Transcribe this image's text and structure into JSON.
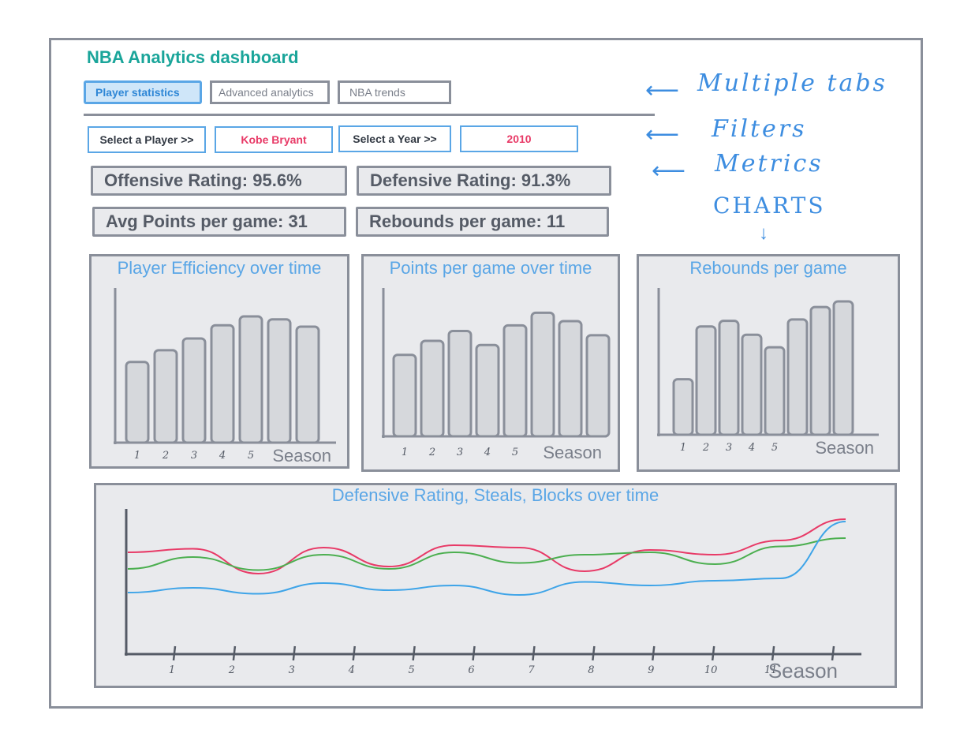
{
  "app": {
    "title": "NBA Analytics dashboard"
  },
  "tabs": [
    {
      "label": "Player statistics",
      "active": true
    },
    {
      "label": "Advanced analytics",
      "active": false
    },
    {
      "label": "NBA trends",
      "active": false
    }
  ],
  "filters": {
    "player_label": "Select a Player  >>",
    "player_value": "Kobe Bryant",
    "year_label": "Select a Year  >>",
    "year_value": "2010"
  },
  "metrics": {
    "offensive": "Offensive Rating: 95.6%",
    "defensive": "Defensive Rating: 91.3%",
    "points": "Avg Points per game: 31",
    "rebounds": "Rebounds per game: 11"
  },
  "annotations": {
    "tabs": "Multiple tabs",
    "filters": "Filters",
    "metrics": "Metrics",
    "charts": "CHARTS"
  },
  "colors": {
    "accent": "#1aa59a",
    "blue": "#5aa6e6",
    "pink": "#e83a67",
    "green": "#4caf50",
    "line_blue": "#3ea4e8"
  },
  "chart_data": [
    {
      "type": "bar",
      "title": "Player Efficiency over time",
      "xlabel": "Season",
      "categories": [
        "1",
        "2",
        "3",
        "4",
        "5",
        "",
        ""
      ],
      "values": [
        55,
        63,
        71,
        80,
        86,
        84,
        79
      ],
      "ylim": [
        0,
        100
      ]
    },
    {
      "type": "bar",
      "title": "Points per game over time",
      "xlabel": "Season",
      "categories": [
        "1",
        "2",
        "3",
        "4",
        "5",
        "",
        "",
        ""
      ],
      "values": [
        58,
        68,
        75,
        65,
        79,
        88,
        82,
        72
      ],
      "ylim": [
        0,
        100
      ]
    },
    {
      "type": "bar",
      "title": "Rebounds per game",
      "xlabel": "Season",
      "categories": [
        "1",
        "2",
        "3",
        "4",
        "5",
        "",
        "",
        ""
      ],
      "values": [
        40,
        78,
        82,
        72,
        63,
        83,
        92,
        96
      ],
      "ylim": [
        0,
        100
      ]
    },
    {
      "type": "line",
      "title": "Defensive Rating, Steals, Blocks over time",
      "xlabel": "Season",
      "x": [
        "1",
        "2",
        "3",
        "4",
        "5",
        "6",
        "7",
        "8",
        "9",
        "10",
        "11",
        ""
      ],
      "ylim": [
        0,
        100
      ],
      "series": [
        {
          "color": "#e83a67",
          "values": [
            70,
            73,
            52,
            74,
            58,
            76,
            74,
            54,
            72,
            68,
            80,
            98
          ]
        },
        {
          "color": "#4caf50",
          "values": [
            56,
            66,
            55,
            68,
            56,
            70,
            61,
            68,
            70,
            60,
            75,
            82
          ]
        },
        {
          "color": "#3ea4e8",
          "values": [
            36,
            40,
            35,
            44,
            38,
            42,
            34,
            45,
            42,
            46,
            48,
            96
          ]
        }
      ]
    }
  ]
}
